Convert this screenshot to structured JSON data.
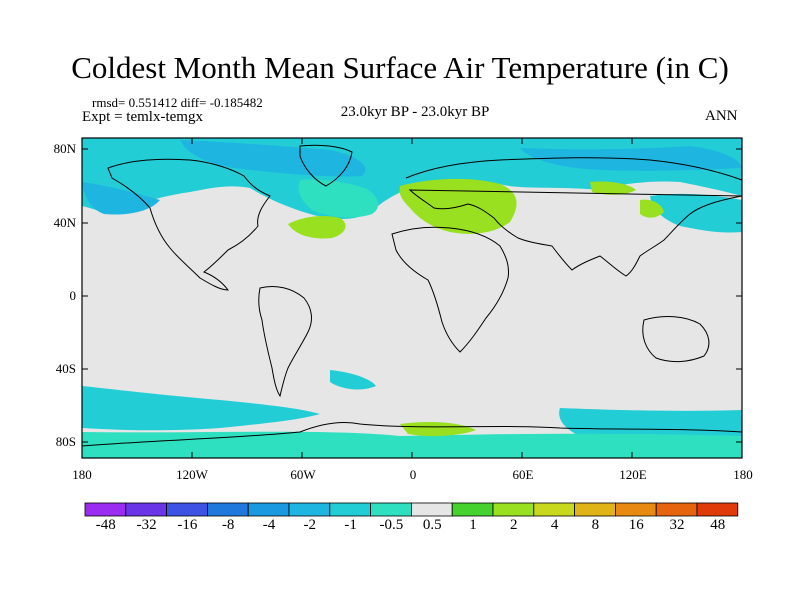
{
  "title": "Coldest Month Mean Surface Air Temperature (in C)",
  "stats": "rmsd= 0.551412  diff= -0.185482",
  "expt": "Expt = temlx-temgx",
  "center_label": "23.0kyr BP - 23.0kyr BP",
  "season": "ANN",
  "lat_labels": [
    "80N",
    "40N",
    "0",
    "40S",
    "80S"
  ],
  "lon_labels": [
    "180",
    "120W",
    "60W",
    "0",
    "60E",
    "120E",
    "180"
  ],
  "colorbar": {
    "labels": [
      "-48",
      "-32",
      "-16",
      "-8",
      "-4",
      "-2",
      "-1",
      "-0.5",
      "0.5",
      "1",
      "2",
      "4",
      "8",
      "16",
      "32",
      "48"
    ],
    "colors": [
      "#9a2cf0",
      "#6a35e6",
      "#3e52e4",
      "#1f78dc",
      "#1a98e0",
      "#1eb6e0",
      "#22cdd6",
      "#2ee0c0",
      "#e6e6e6",
      "#46d22e",
      "#98e020",
      "#c8d81c",
      "#e0b418",
      "#e88a12",
      "#e6640e",
      "#e03a08"
    ]
  },
  "chart_data": {
    "type": "heatmap",
    "title": "Coldest Month Mean Surface Air Temperature (in C)",
    "xlim": [
      -180,
      180
    ],
    "ylim": [
      -90,
      90
    ],
    "x_ticks": [
      "180",
      "120W",
      "60W",
      "0",
      "60E",
      "120E",
      "180"
    ],
    "y_ticks": [
      "80N",
      "40N",
      "0",
      "40S",
      "80S"
    ],
    "levels": [
      -48,
      -32,
      -16,
      -8,
      -4,
      -2,
      -1,
      -0.5,
      0.5,
      1,
      2,
      4,
      8,
      16,
      32,
      48
    ],
    "field_summary": {
      "near_zero": "most of tropics and midlatitudes (-0.5 to 0.5)",
      "cooling": "polar oceans, North Atlantic, North Pacific, Southern Ocean (-1 to -2)",
      "warming": "Europe/western Asia, NW Atlantic patch, Antarctic coast patches (0.5 to 2)"
    }
  }
}
